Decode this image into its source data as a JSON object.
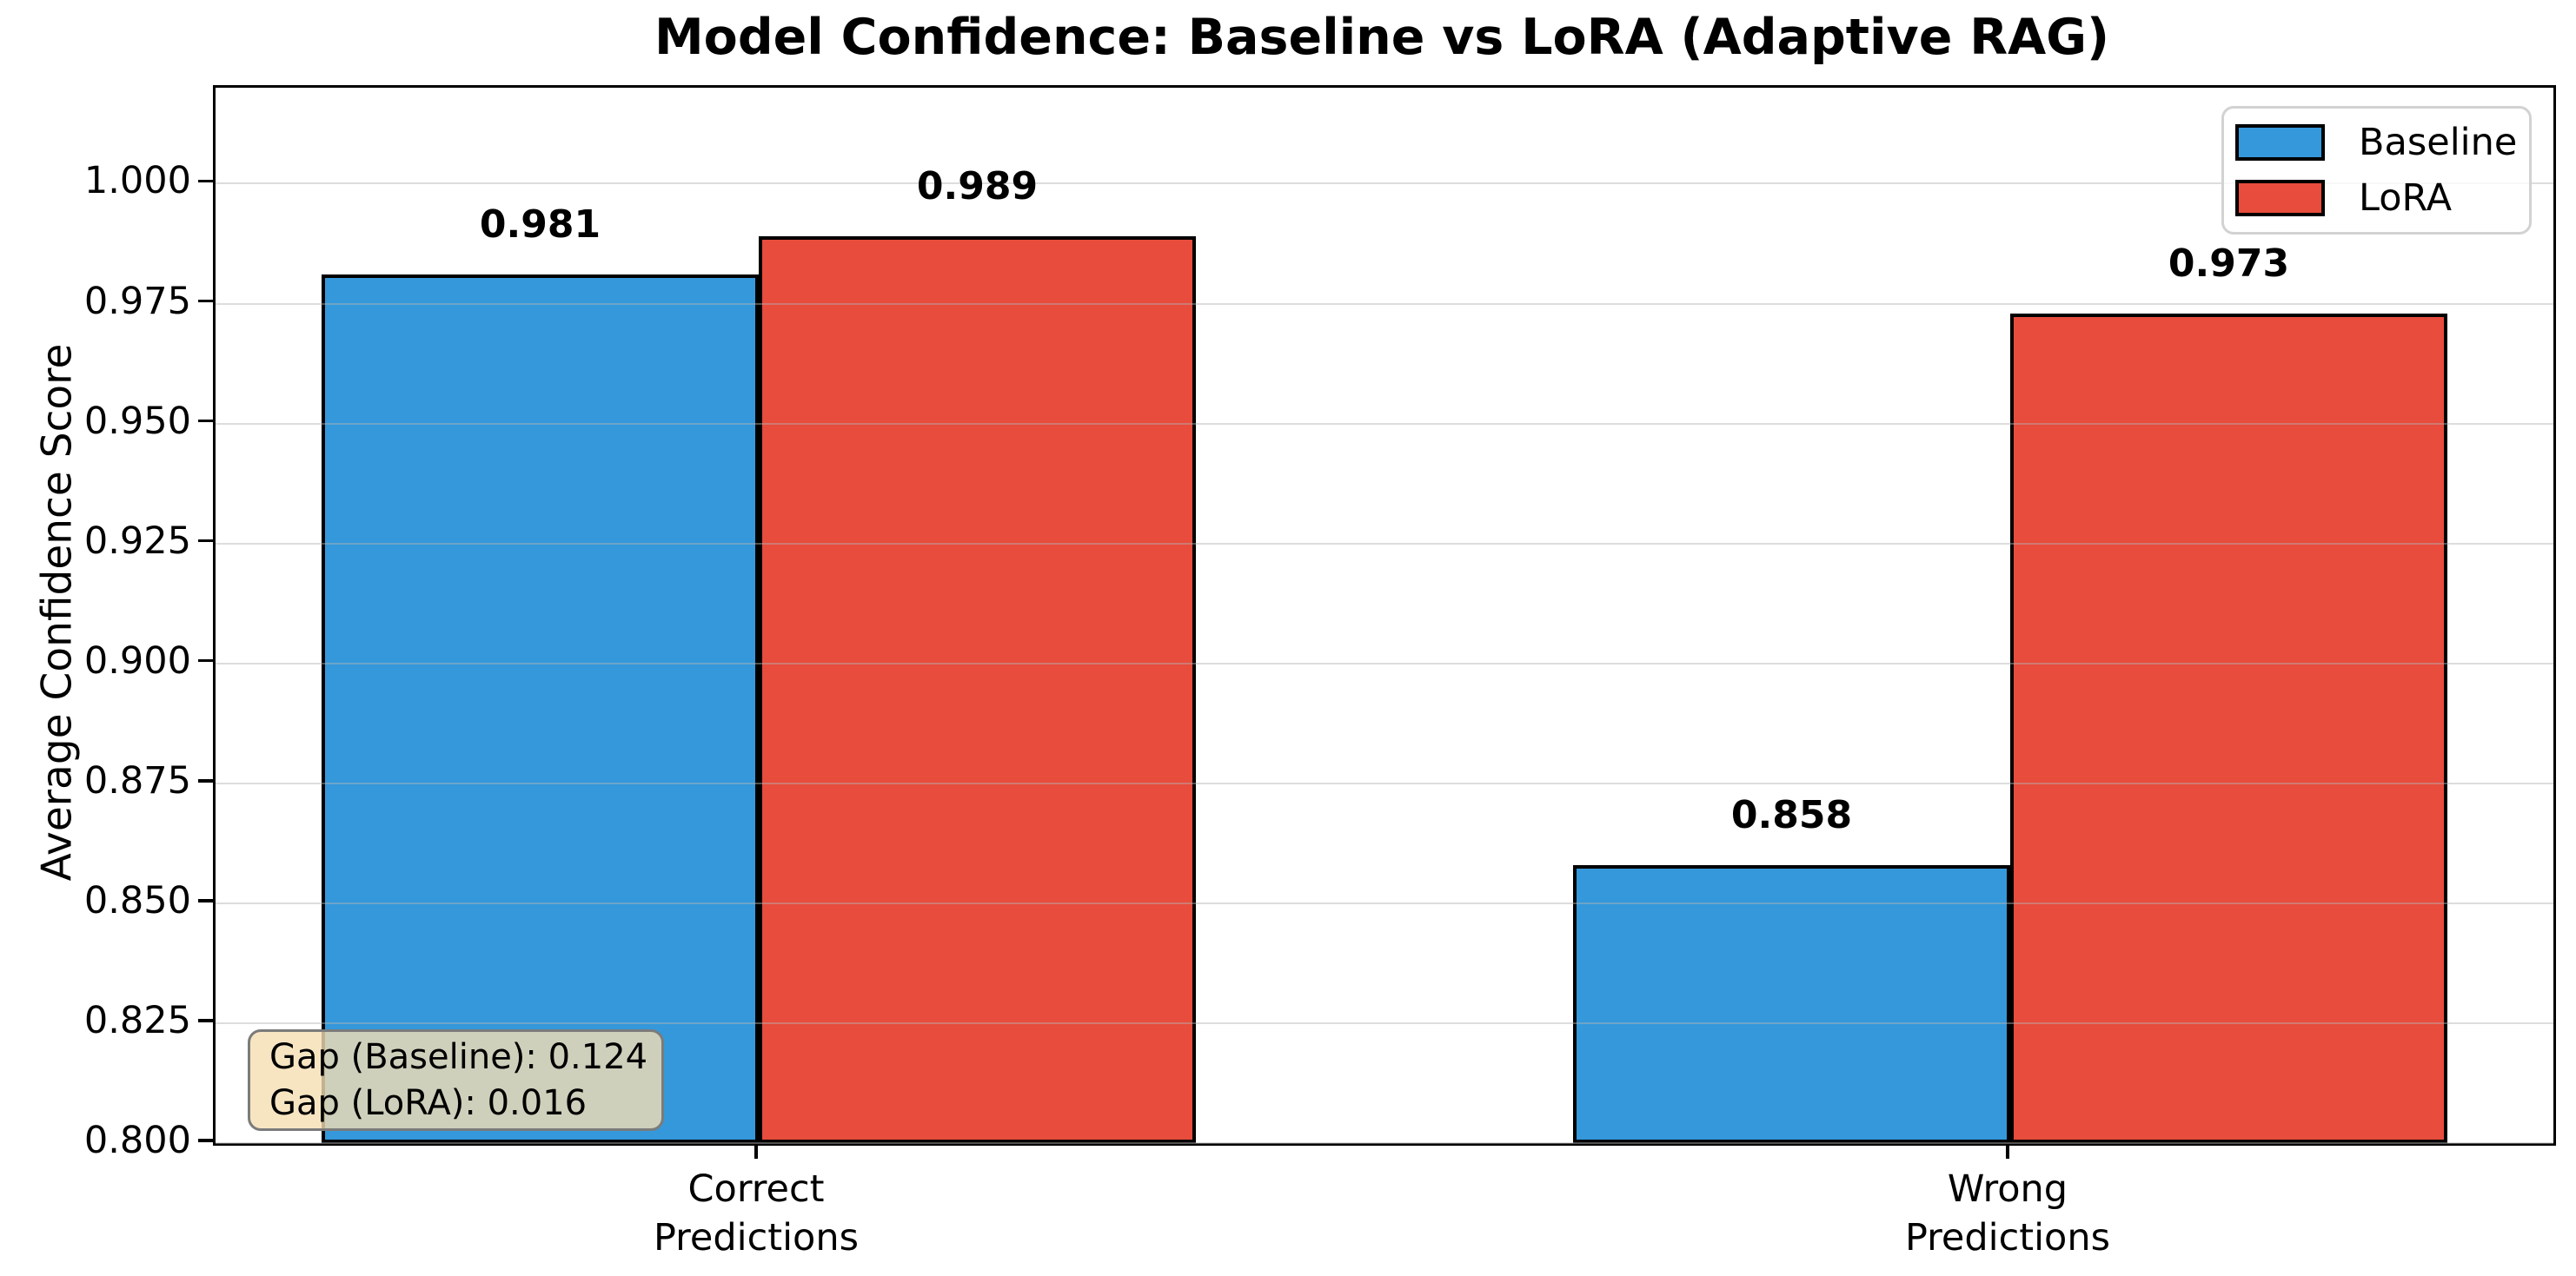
{
  "title": "Model Confidence: Baseline vs LoRA (Adaptive RAG)",
  "annotation": {
    "lines": [
      "Gap (Baseline): 0.124",
      "Gap (LoRA): 0.016"
    ],
    "bg_color": "#f5deb3",
    "border_color": "#7b7b7b"
  },
  "legend": {
    "position": "upper right",
    "entries": [
      {
        "label": "Baseline",
        "color": "#3498db"
      },
      {
        "label": "LoRA",
        "color": "#e74c3c"
      }
    ]
  },
  "chart_data": {
    "type": "bar",
    "title": "Model Confidence: Baseline vs LoRA (Adaptive RAG)",
    "xlabel": "",
    "ylabel": "Average Confidence Score",
    "categories": [
      "Correct\nPredictions",
      "Wrong\nPredictions"
    ],
    "series": [
      {
        "name": "Baseline",
        "color": "#3498db",
        "values": [
          0.981,
          0.858
        ]
      },
      {
        "name": "LoRA",
        "color": "#e74c3c",
        "values": [
          0.989,
          0.973
        ]
      }
    ],
    "bar_value_labels": [
      [
        "0.981",
        "0.858"
      ],
      [
        "0.989",
        "0.973"
      ]
    ],
    "ylim": [
      0.8,
      1.02
    ],
    "yticks": [
      0.8,
      0.825,
      0.85,
      0.875,
      0.9,
      0.925,
      0.95,
      0.975,
      1.0
    ],
    "ytick_labels": [
      "0.800",
      "0.825",
      "0.850",
      "0.875",
      "0.900",
      "0.925",
      "0.950",
      "0.975",
      "1.000"
    ],
    "grid": "horizontal",
    "grid_over_bars": true,
    "bar_edge_color": "#000000",
    "legend_position": "upper right"
  }
}
